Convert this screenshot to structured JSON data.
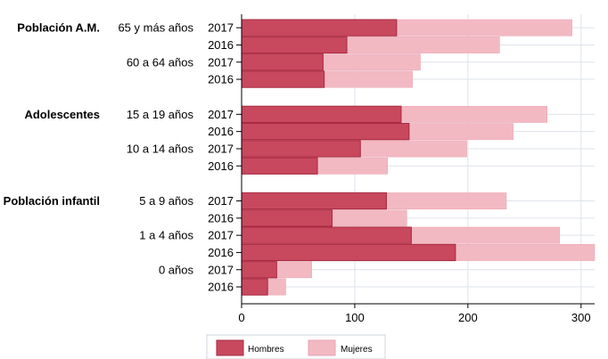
{
  "chart_data": {
    "type": "bar",
    "orientation": "horizontal",
    "stacked": true,
    "xlim": [
      0,
      312
    ],
    "x_ticks": [
      0,
      100,
      200,
      300
    ],
    "grid": true,
    "legend_position": "bottom-center",
    "colors": {
      "hombres": "#c8485e",
      "mujeres": "#f2b9c3",
      "hombres_edge": "#a82a40",
      "grid": "#dde3ea",
      "axis": "#000000"
    },
    "series": [
      {
        "name": "Hombres",
        "values": [
          137,
          93,
          72,
          73,
          141,
          148,
          105,
          67,
          128,
          80,
          150,
          189,
          31,
          23
        ]
      },
      {
        "name": "Mujeres",
        "values": [
          155,
          135,
          86,
          78,
          129,
          92,
          94,
          62,
          106,
          66,
          131,
          123,
          31,
          16
        ]
      }
    ],
    "groups": [
      {
        "label": "Población A.M.",
        "subgroups": [
          {
            "label": "65 y más años",
            "years": [
              "2017",
              "2016"
            ]
          },
          {
            "label": "60 a 64 años",
            "years": [
              "2017",
              "2016"
            ]
          }
        ]
      },
      {
        "label": "Adolescentes",
        "subgroups": [
          {
            "label": "15 a 19 años",
            "years": [
              "2017",
              "2016"
            ]
          },
          {
            "label": "10 a 14 años",
            "years": [
              "2017",
              "2016"
            ]
          }
        ]
      },
      {
        "label": "Población infantil",
        "subgroups": [
          {
            "label": "5 a 9 años",
            "years": [
              "2017",
              "2016"
            ]
          },
          {
            "label": "1 a 4 años",
            "years": [
              "2017",
              "2016"
            ]
          },
          {
            "label": "0 años",
            "years": [
              "2017",
              "2016"
            ]
          }
        ]
      }
    ]
  }
}
